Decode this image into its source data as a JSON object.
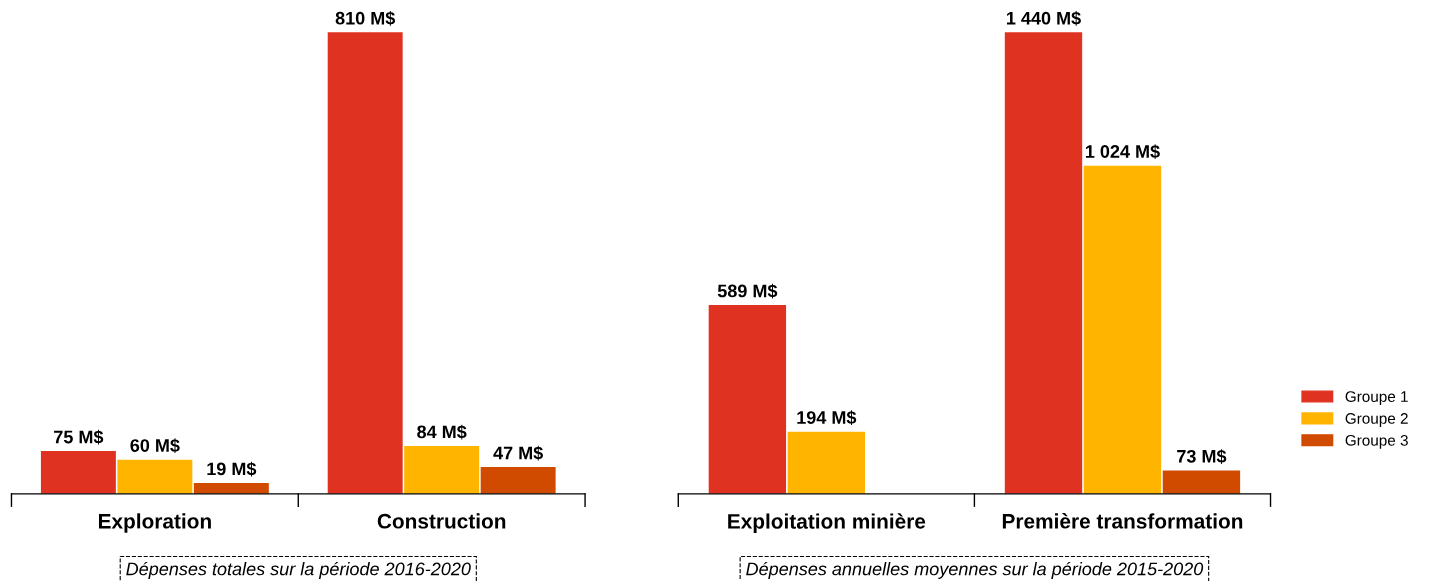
{
  "chart_data": [
    {
      "type": "bar",
      "categories": [
        "Exploration",
        "Construction"
      ],
      "tick_labels": "x",
      "grid": false,
      "data_labels": true,
      "series": [
        {
          "color": "#e03220",
          "values": [
            75,
            810
          ],
          "value_labels": [
            "75 M$",
            "810 M$"
          ]
        },
        {
          "color": "#ffb400",
          "values": [
            60,
            84
          ],
          "value_labels": [
            "60 M$",
            "84 M$"
          ]
        },
        {
          "color": "#d04a00",
          "values": [
            19,
            47
          ],
          "value_labels": [
            "19 M$",
            "47 M$"
          ]
        }
      ],
      "annotations": [
        "Dépenses totales sur la période 2016-2020"
      ]
    },
    {
      "type": "bar",
      "categories": [
        "Exploitation minière",
        "Première transformation"
      ],
      "tick_labels": "x",
      "grid": false,
      "legend": "right",
      "data_labels": true,
      "series": [
        {
          "name": "Groupe 1",
          "color": "#e03220",
          "values": [
            589,
            1440
          ],
          "value_labels": [
            "589 M$",
            "1 440 M$"
          ]
        },
        {
          "name": "Groupe 2",
          "color": "#ffb400",
          "values": [
            194,
            1024
          ],
          "value_labels": [
            "194 M$",
            "1 024 M$"
          ]
        },
        {
          "name": "Groupe 3",
          "color": "#d04a00",
          "values": [
            null,
            73
          ],
          "value_labels": [
            null,
            "73 M$"
          ]
        }
      ],
      "annotations": [
        "Dépenses annuelles moyennes sur la période 2015-2020"
      ]
    }
  ]
}
